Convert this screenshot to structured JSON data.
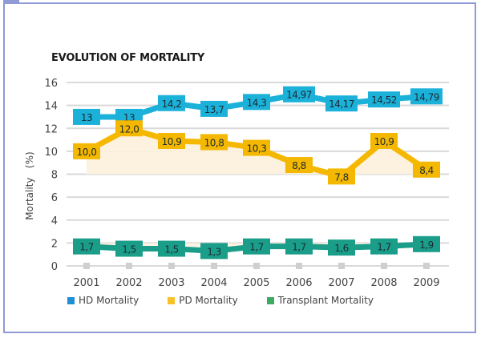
{
  "chart_data": {
    "type": "line",
    "title": "EVOLUTION OF MORTALITY",
    "xlabel": "",
    "ylabel": "Mortality   (%)",
    "categories": [
      "2001",
      "2002",
      "2003",
      "2004",
      "2005",
      "2006",
      "2007",
      "2008",
      "2009"
    ],
    "ylim": [
      0,
      16
    ],
    "yticks": [
      0,
      2,
      4,
      6,
      8,
      10,
      12,
      14,
      16
    ],
    "grid": true,
    "legend_position": "bottom",
    "series": [
      {
        "name": "HD Mortality",
        "color": "#1bb1d9",
        "legend_color": "#1e8ed6",
        "values": [
          13,
          13,
          14.2,
          13.7,
          14.3,
          14.97,
          14.17,
          14.52,
          14.79
        ],
        "labels": [
          "13",
          "13",
          "14,2",
          "13,7",
          "14,3",
          "14,97",
          "14,17",
          "14,52",
          "14,79"
        ]
      },
      {
        "name": "PD Mortality",
        "color": "#f5b800",
        "legend_color": "#f8c226",
        "values": [
          10.0,
          12.0,
          10.9,
          10.8,
          10.3,
          8.8,
          7.8,
          10.9,
          8.4
        ],
        "labels": [
          "10,0",
          "12,0",
          "10,9",
          "10,8",
          "10,3",
          "8,8",
          "7,8",
          "10,9",
          "8,4"
        ]
      },
      {
        "name": "Transplant Mortality",
        "color": "#1a9e8a",
        "legend_color": "#3cab62",
        "values": [
          1.7,
          1.5,
          1.5,
          1.3,
          1.7,
          1.7,
          1.6,
          1.7,
          1.9
        ],
        "labels": [
          "1,7",
          "1,5",
          "1,5",
          "1,3",
          "1,7",
          "1,7",
          "1,6",
          "1,7",
          "1,9"
        ]
      }
    ]
  },
  "colors": {
    "frame": "#8f9ad6",
    "grid": "#d9d9d9",
    "pd_fill": "#fdf1dc",
    "tick_marker": "#cfcfcf",
    "text": "#333333"
  }
}
